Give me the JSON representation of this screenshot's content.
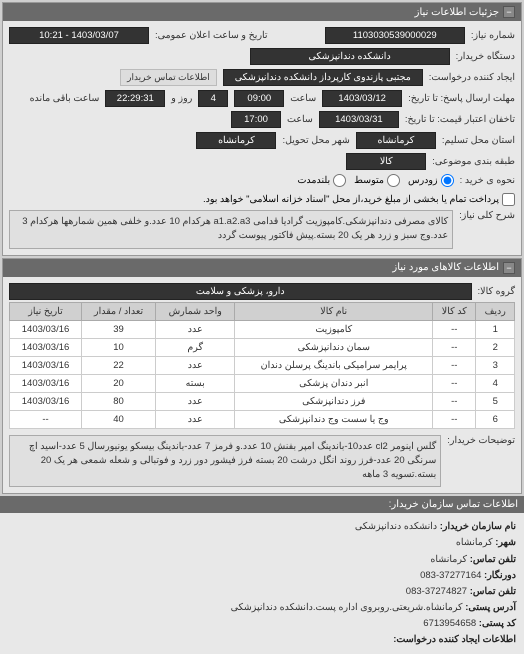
{
  "panels": {
    "details_title": "جزئیات اطلاعات نیاز",
    "items_title": "اطلاعات کالاهای مورد نیاز"
  },
  "header": {
    "req_no_label": "شماره نیاز:",
    "req_no": "1103030539000029",
    "announce_label": "تاریخ و ساعت اعلان عمومی:",
    "announce_val": "1403/03/07 - 10:21",
    "buyer_org_label": "دستگاه خریدار:",
    "buyer_org": "دانشکده دندانپزشکی",
    "requester_label": "ایجاد کننده درخواست:",
    "requester": "مجتبی پازندوی کارپرداز دانشکده دندانپزشکی",
    "contact_btn": "اطلاعات تماس خریدار",
    "deadline_label": "مهلت ارسال پاسخ: تا تاریخ:",
    "deadline_date": "1403/03/12",
    "time_label": "ساعت",
    "deadline_time": "09:00",
    "days_remain": "4",
    "days_remain_label": "روز و",
    "time_remain": "22:29:31",
    "time_remain_label": "ساعت باقی مانده",
    "price_validity_label": "تاخفان اعتبار قیمت: تا تاریخ:",
    "price_validity_date": "1403/03/31",
    "price_validity_time": "17:00",
    "location_label": "استان محل تسلیم:",
    "location_province": "کرمانشاه",
    "location_city_label": "شهر محل تحویل:",
    "location_city": "کرمانشاه",
    "budget_label": "طبقه بندی موضوعی:",
    "budget_val": "کالا"
  },
  "purchase": {
    "type_label": "نحوه ی خرید :",
    "opt1": "زودرس",
    "opt2": "متوسط",
    "opt3": "بلندمدت",
    "note": "پرداخت تمام یا بخشی از مبلغ خرید،از محل \"اسناد خزانه اسلامی\" خواهد بود."
  },
  "overview": {
    "label": "شرح کلی نیاز:",
    "text": "کالای مصرفی دندانپزشکی.کامپوزیت گرادیا قدامی a1.a2.a3 هرکدام 10 عدد.و خلفی همین شمارهها هرکدام 3 عدد.وج سبز و زرد هر یک 20 بسته.پیش فاکتور پیوست گردد"
  },
  "group": {
    "label": "گروه کالا:",
    "value": "دارو، پزشکی و سلامت"
  },
  "table": {
    "cols": [
      "ردیف",
      "کد کالا",
      "نام کالا",
      "واحد شمارش",
      "تعداد / مقدار",
      "تاریخ نیاز"
    ],
    "rows": [
      [
        "1",
        "--",
        "کامپوزیت",
        "عدد",
        "39",
        "1403/03/16"
      ],
      [
        "2",
        "--",
        "سمان دندانپزشکی",
        "گرم",
        "10",
        "1403/03/16"
      ],
      [
        "3",
        "--",
        "پرایمر سرامیکی باندینگ پرسلن دندان",
        "عدد",
        "22",
        "1403/03/16"
      ],
      [
        "4",
        "--",
        "انبر دندان پزشکی",
        "بسته",
        "20",
        "1403/03/16"
      ],
      [
        "5",
        "--",
        "فرز دندانپزشکی",
        "عدد",
        "80",
        "1403/03/16"
      ],
      [
        "6",
        "--",
        "وج یا سست وج دندانپزشکی",
        "عدد",
        "40",
        "--"
      ]
    ]
  },
  "buyer_notes": {
    "label": "توضیحات خریدار:",
    "text": "گلس اینومر cl2 عدد10-باندینگ امپر بفنش 10 عدد.و فرمز 7 عدد-باندینگ بیسکو یونیورسال 5 عدد-اسید اچ سرنگی 20 عدد-فرز روند انگل درشت 20 بسته فرز فیشور دور زرد و فوتبالی و شعله شمعی هر یک 20 بسته.تسویه 3 ماهه"
  },
  "contact": {
    "title": "اطلاعات تماس سازمان خریدار:",
    "org_label": "نام سازمان خریدار:",
    "org": "دانشکده دندانپزشکی",
    "city_label": "شهر:",
    "city": "کرمانشاه",
    "phone_label": "تلفن تماس:",
    "phone": "کرمانشاه",
    "fax_label": "دورنگار:",
    "fax": "37277164-083",
    "post_label": "تلفن تماس:",
    "post": "37274827-083",
    "address_label": "آدرس پستی:",
    "address": "کرمانشاه.شریعتی.روبروی اداره پست.دانشکده دندانپزشکی",
    "zip_label": "کد پستی:",
    "zip": "6713954658",
    "creator_label": "اطلاعات ایجاد کننده درخواست:"
  },
  "colors": {
    "header_bg": "#6a6a6a",
    "panel_bg": "#e8e8e8",
    "field_bg": "#333333",
    "body_bg": "#cfcfcf",
    "th_bg": "#d0d0d0"
  }
}
